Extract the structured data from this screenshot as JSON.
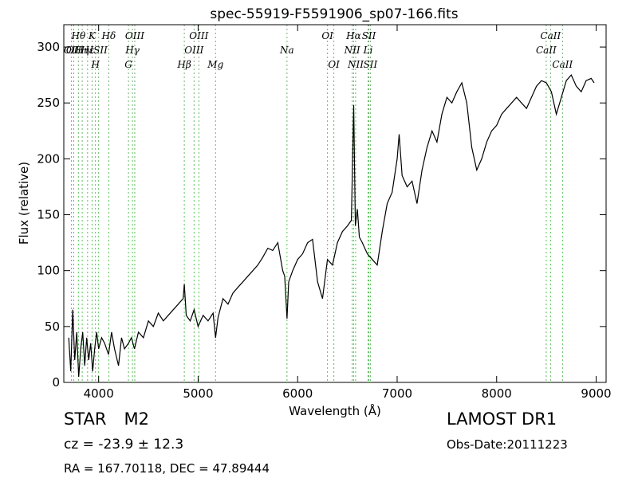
{
  "chart_data": {
    "type": "line",
    "title": "spec-55919-F5591906_sp07-166.fits",
    "xlabel": "Wavelength (Å)",
    "ylabel": "Flux (relative)",
    "xlim": [
      3650,
      9100
    ],
    "ylim": [
      0,
      320
    ],
    "xticks": [
      4000,
      5000,
      6000,
      7000,
      8000,
      9000
    ],
    "yticks": [
      0,
      50,
      100,
      150,
      200,
      250,
      300
    ],
    "grid": false,
    "series": [
      {
        "x": [
          3700,
          3720,
          3740,
          3760,
          3780,
          3800,
          3820,
          3840,
          3860,
          3880,
          3900,
          3920,
          3940,
          3960,
          3980,
          4000,
          4030,
          4060,
          4100,
          4130,
          4160,
          4200,
          4230,
          4260,
          4300,
          4330,
          4360,
          4400,
          4450,
          4500,
          4550,
          4600,
          4650,
          4700,
          4750,
          4800,
          4850,
          4861,
          4880,
          4920,
          4960,
          5000,
          5050,
          5100,
          5150,
          5175,
          5200,
          5250,
          5300,
          5350,
          5400,
          5450,
          5500,
          5550,
          5600,
          5650,
          5700,
          5750,
          5800,
          5850,
          5870,
          5893,
          5910,
          5950,
          6000,
          6050,
          6100,
          6150,
          6200,
          6250,
          6300,
          6350,
          6400,
          6450,
          6500,
          6540,
          6563,
          6580,
          6600,
          6620,
          6650,
          6700,
          6750,
          6800,
          6850,
          6900,
          6950,
          7000,
          7020,
          7050,
          7100,
          7150,
          7200,
          7250,
          7300,
          7350,
          7400,
          7450,
          7500,
          7550,
          7600,
          7650,
          7700,
          7750,
          7800,
          7850,
          7900,
          7950,
          8000,
          8050,
          8100,
          8150,
          8200,
          8250,
          8300,
          8350,
          8400,
          8450,
          8500,
          8550,
          8600,
          8650,
          8700,
          8750,
          8800,
          8850,
          8900,
          8950,
          8980
        ],
        "y": [
          40,
          10,
          65,
          20,
          45,
          5,
          30,
          45,
          15,
          40,
          20,
          35,
          10,
          30,
          45,
          30,
          40,
          35,
          25,
          45,
          30,
          15,
          40,
          30,
          35,
          40,
          30,
          45,
          40,
          55,
          50,
          62,
          55,
          60,
          65,
          70,
          75,
          88,
          60,
          55,
          65,
          50,
          60,
          55,
          62,
          40,
          58,
          75,
          70,
          80,
          85,
          90,
          95,
          100,
          105,
          112,
          120,
          118,
          125,
          100,
          95,
          57,
          90,
          100,
          110,
          115,
          125,
          128,
          90,
          75,
          110,
          105,
          125,
          135,
          140,
          145,
          248,
          140,
          155,
          130,
          125,
          115,
          110,
          105,
          135,
          160,
          170,
          200,
          222,
          185,
          175,
          180,
          160,
          190,
          210,
          225,
          215,
          240,
          255,
          250,
          260,
          268,
          250,
          210,
          190,
          200,
          215,
          225,
          230,
          240,
          245,
          250,
          255,
          250,
          245,
          255,
          265,
          270,
          268,
          260,
          240,
          255,
          270,
          275,
          265,
          260,
          270,
          272,
          268
        ]
      }
    ],
    "spectral_lines": [
      {
        "wl": 3727,
        "label": "OII",
        "row": 2
      },
      {
        "wl": 3750,
        "label": "OII",
        "row": 1
      },
      {
        "wl": 3797,
        "label": "Hθ",
        "row": 0
      },
      {
        "wl": 3835,
        "label": "Hη",
        "row": 2
      },
      {
        "wl": 3889,
        "label": "Hε",
        "row": 1
      },
      {
        "wl": 3934,
        "label": "K",
        "row": 0
      },
      {
        "wl": 3968,
        "label": "H",
        "row": 3
      },
      {
        "wl": 4000,
        "label": "ISII",
        "row": 1
      },
      {
        "wl": 4102,
        "label": "Hδ",
        "row": 0
      },
      {
        "wl": 4300,
        "label": "G",
        "row": 3
      },
      {
        "wl": 4340,
        "label": "Hγ",
        "row": 1
      },
      {
        "wl": 4363,
        "label": "OIII",
        "row": 0
      },
      {
        "wl": 4861,
        "label": "Hβ",
        "row": 3
      },
      {
        "wl": 4959,
        "label": "OIII",
        "row": 2
      },
      {
        "wl": 5007,
        "label": "OIII",
        "row": 0
      },
      {
        "wl": 5175,
        "label": "Mg",
        "row": 3
      },
      {
        "wl": 5893,
        "label": "Na",
        "row": 2
      },
      {
        "wl": 6300,
        "label": "OI",
        "row": 0
      },
      {
        "wl": 6364,
        "label": "OI",
        "row": 3
      },
      {
        "wl": 6548,
        "label": "NII",
        "row": 2
      },
      {
        "wl": 6563,
        "label": "Hα",
        "row": 0
      },
      {
        "wl": 6583,
        "label": "NII",
        "row": 3
      },
      {
        "wl": 6708,
        "label": "Li",
        "row": 2
      },
      {
        "wl": 6716,
        "label": "SII",
        "row": 0
      },
      {
        "wl": 6731,
        "label": "SII",
        "row": 3
      },
      {
        "wl": 8498,
        "label": "CaII",
        "row": 1
      },
      {
        "wl": 8542,
        "label": "CaII",
        "row": 0
      },
      {
        "wl": 8662,
        "label": "CaII",
        "row": 3
      }
    ]
  },
  "info": {
    "class_label": "STAR",
    "subclass": "M2",
    "survey": "LAMOST DR1",
    "cz": "cz = -23.9 ± 12.3",
    "obs_date": "Obs-Date:20111223",
    "radec": "RA = 167.70118, DEC = 47.89444"
  },
  "colors": {
    "spectrum": "#000000",
    "line_marker": "#5bbf5b"
  }
}
